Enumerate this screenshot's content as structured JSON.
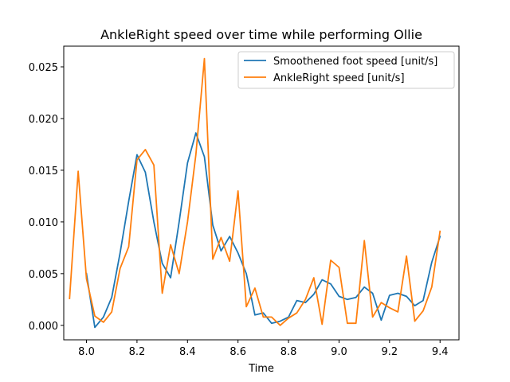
{
  "chart_data": {
    "type": "line",
    "title": "AnkleRight speed over time while performing Ollie",
    "xlabel": "Time",
    "ylabel": "",
    "xlim": [
      7.91,
      9.475
    ],
    "ylim": [
      -0.0014,
      0.027
    ],
    "x_ticks": [
      8.0,
      8.2,
      8.4,
      8.6,
      8.8,
      9.0,
      9.2,
      9.4
    ],
    "x_tick_labels": [
      "8.0",
      "8.2",
      "8.4",
      "8.6",
      "8.8",
      "9.0",
      "9.2",
      "9.4"
    ],
    "y_ticks": [
      0.0,
      0.005,
      0.01,
      0.015,
      0.02,
      0.025
    ],
    "y_tick_labels": [
      "0.000",
      "0.005",
      "0.010",
      "0.015",
      "0.020",
      "0.025"
    ],
    "grid": false,
    "legend_position": "top-right",
    "series": [
      {
        "name": "Smoothened foot speed [unit/s]",
        "color": "#1f77b4",
        "x": [
          8.0,
          8.033,
          8.067,
          8.1,
          8.133,
          8.167,
          8.2,
          8.233,
          8.267,
          8.3,
          8.333,
          8.367,
          8.4,
          8.433,
          8.467,
          8.5,
          8.533,
          8.567,
          8.6,
          8.633,
          8.667,
          8.7,
          8.733,
          8.767,
          8.8,
          8.833,
          8.867,
          8.9,
          8.933,
          8.967,
          9.0,
          9.033,
          9.067,
          9.1,
          9.133,
          9.167,
          9.2,
          9.233,
          9.267,
          9.3,
          9.333,
          9.367,
          9.4
        ],
        "y": [
          0.005,
          -0.0002,
          0.0008,
          0.0027,
          0.007,
          0.012,
          0.0165,
          0.0148,
          0.01,
          0.006,
          0.0046,
          0.01,
          0.0157,
          0.0186,
          0.0163,
          0.0097,
          0.0072,
          0.0086,
          0.007,
          0.005,
          0.001,
          0.0012,
          0.0002,
          0.0004,
          0.0008,
          0.0024,
          0.0022,
          0.003,
          0.0044,
          0.004,
          0.0028,
          0.0025,
          0.0027,
          0.0037,
          0.0031,
          0.0005,
          0.0029,
          0.0031,
          0.0028,
          0.0019,
          0.0024,
          0.0061,
          0.0086
        ]
      },
      {
        "name": "AnkleRight speed [unit/s]",
        "color": "#ff7f0e",
        "x": [
          7.933,
          7.967,
          8.0,
          8.033,
          8.067,
          8.1,
          8.133,
          8.167,
          8.2,
          8.233,
          8.267,
          8.3,
          8.333,
          8.367,
          8.4,
          8.433,
          8.467,
          8.5,
          8.533,
          8.567,
          8.6,
          8.633,
          8.667,
          8.7,
          8.733,
          8.767,
          8.8,
          8.833,
          8.867,
          8.9,
          8.933,
          8.967,
          9.0,
          9.033,
          9.067,
          9.1,
          9.133,
          9.167,
          9.2,
          9.233,
          9.267,
          9.3,
          9.333,
          9.367,
          9.4
        ],
        "y": [
          0.0026,
          0.0149,
          0.0045,
          0.0009,
          0.0003,
          0.0013,
          0.0055,
          0.0076,
          0.016,
          0.017,
          0.0155,
          0.0031,
          0.0078,
          0.005,
          0.01,
          0.0165,
          0.0258,
          0.0064,
          0.0085,
          0.0062,
          0.013,
          0.0018,
          0.0036,
          0.0008,
          0.0008,
          0.0,
          0.0007,
          0.0012,
          0.0025,
          0.0046,
          0.0001,
          0.0063,
          0.0056,
          0.0002,
          0.0002,
          0.0082,
          0.0008,
          0.0022,
          0.0017,
          0.0013,
          0.0067,
          0.0004,
          0.0014,
          0.0037,
          0.0091
        ]
      }
    ]
  }
}
